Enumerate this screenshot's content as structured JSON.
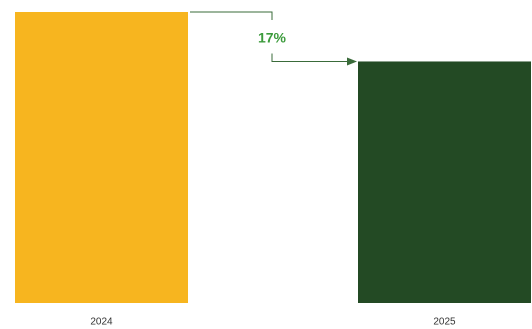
{
  "chart_data": {
    "type": "bar",
    "categories": [
      "2024",
      "2025"
    ],
    "values": [
      100,
      83
    ],
    "colors": [
      "#f7b51f",
      "#234a24"
    ],
    "ylim": [
      0,
      100
    ],
    "annotation": "17%",
    "annotation_color": "#3c9b3c"
  }
}
